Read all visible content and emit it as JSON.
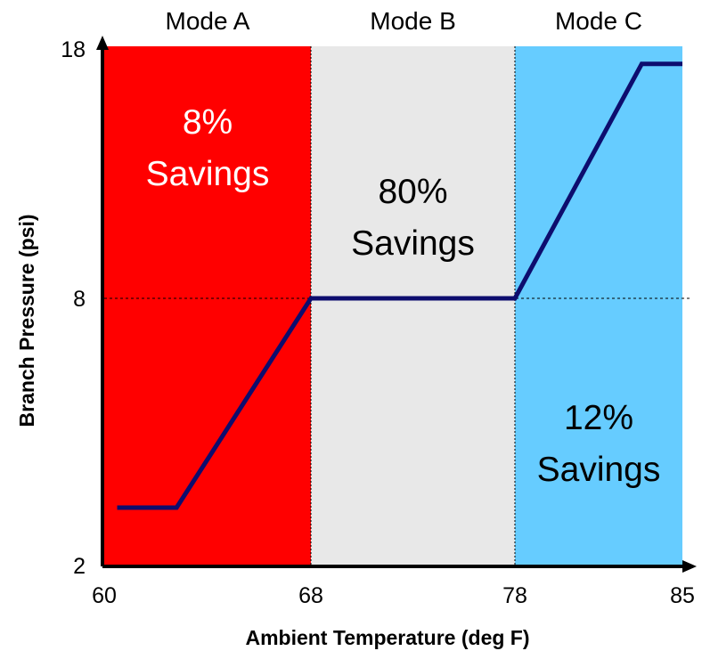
{
  "chart_data": {
    "type": "line",
    "xlabel": "Ambient Temperature (deg F)",
    "ylabel": "Branch Pressure (psi)",
    "x_ticks": [
      "60",
      "68",
      "78",
      "85"
    ],
    "y_ticks": [
      "2",
      "8",
      "18"
    ],
    "series": [
      {
        "x": [
          60.5,
          62.8,
          68,
          78,
          83.3,
          85
        ],
        "y": [
          3.3,
          3.3,
          8,
          8,
          17.4,
          17.4
        ]
      }
    ],
    "regions": [
      {
        "name": "Mode A",
        "x_start": 60,
        "x_end": 68,
        "color": "#ff0000",
        "savings": [
          "8%",
          "Savings"
        ]
      },
      {
        "name": "Mode B",
        "x_start": 68,
        "x_end": 78,
        "color": "#e8e8e8",
        "savings": [
          "80%",
          "Savings"
        ]
      },
      {
        "name": "Mode C",
        "x_start": 78,
        "x_end": 85,
        "color": "#66ccff",
        "savings": [
          "12%",
          "Savings"
        ]
      }
    ],
    "reference_line_y": 8,
    "line_color": "#0d0d6e",
    "grid": false
  }
}
